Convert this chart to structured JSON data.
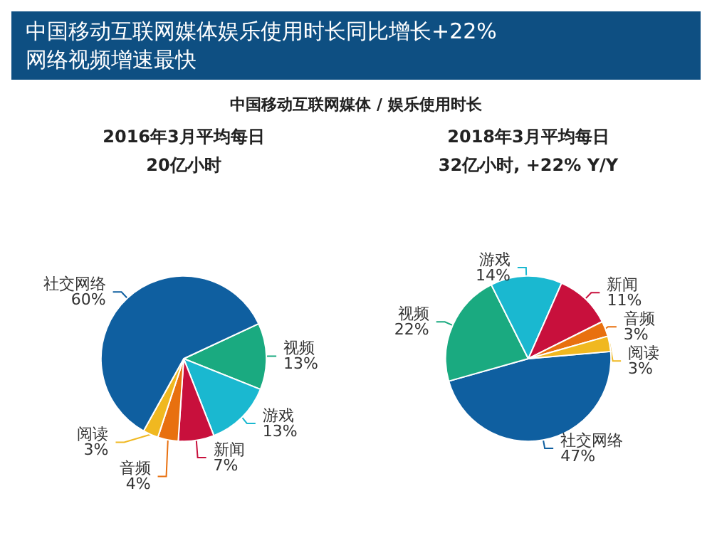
{
  "chart_data": [
    {
      "type": "pie",
      "title": "2016年3月平均每日",
      "subtitle": "20亿小时",
      "annotations": [
        "中国移动互联网媒体娱乐使用时长同比增长+22%",
        "网络视频增速最快",
        "中国移动互联网媒体 / 娱乐使用时长"
      ],
      "categories": [
        "视频",
        "游戏",
        "新闻",
        "音频",
        "阅读",
        "社交网络"
      ],
      "values": [
        13,
        13,
        7,
        4,
        3,
        60
      ],
      "value_labels": [
        "13%",
        "13%",
        "7%",
        "4%",
        "3%",
        "60%"
      ],
      "colors": [
        "#1aaa80",
        "#1ab8d0",
        "#c8103c",
        "#e8700f",
        "#f0b820",
        "#0f5fa0"
      ],
      "legend": false
    },
    {
      "type": "pie",
      "title": "2018年3月平均每日",
      "subtitle": "32亿小时, +22% Y/Y",
      "categories": [
        "社交网络",
        "视频",
        "游戏",
        "新闻",
        "音频",
        "阅读"
      ],
      "values": [
        47,
        22,
        14,
        11,
        3,
        3
      ],
      "value_labels": [
        "47%",
        "22%",
        "14%",
        "11%",
        "3%",
        "3%"
      ],
      "colors": [
        "#0f5fa0",
        "#1aaa80",
        "#1ab8d0",
        "#c8103c",
        "#e8700f",
        "#f0b820"
      ],
      "legend": false
    }
  ]
}
